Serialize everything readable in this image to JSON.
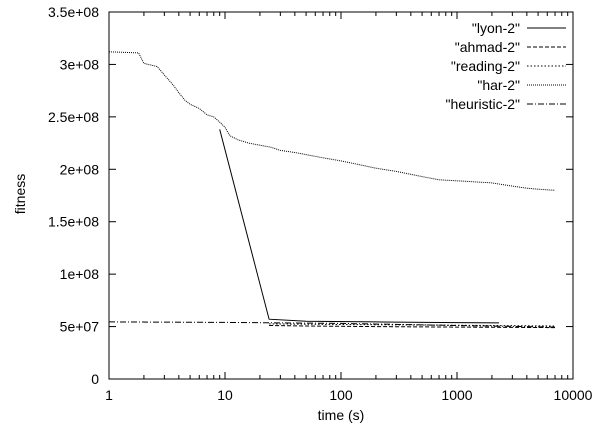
{
  "chart_data": {
    "type": "line",
    "xlabel": "time (s)",
    "ylabel": "fitness",
    "x_scale": "log",
    "xlim": [
      1,
      10000
    ],
    "ylim": [
      0,
      350000000
    ],
    "x_ticks": [
      {
        "value": 1,
        "label": "1"
      },
      {
        "value": 10,
        "label": "10"
      },
      {
        "value": 100,
        "label": "100"
      },
      {
        "value": 1000,
        "label": "1000"
      },
      {
        "value": 10000,
        "label": "10000"
      }
    ],
    "y_ticks": [
      {
        "value": 0,
        "label": "0"
      },
      {
        "value": 50000000,
        "label": "5e+07"
      },
      {
        "value": 100000000,
        "label": "1e+08"
      },
      {
        "value": 150000000,
        "label": "1.5e+08"
      },
      {
        "value": 200000000,
        "label": "2e+08"
      },
      {
        "value": 250000000,
        "label": "2.5e+08"
      },
      {
        "value": 300000000,
        "label": "3e+08"
      },
      {
        "value": 350000000,
        "label": "3.5e+08"
      }
    ],
    "grid": false,
    "legend_position": "top-right",
    "series": [
      {
        "name": "\"lyon-2\"",
        "dash": "solid",
        "points": [
          [
            9,
            238000000
          ],
          [
            24,
            57000000
          ],
          [
            50,
            55000000
          ],
          [
            200,
            54500000
          ],
          [
            1000,
            53800000
          ],
          [
            2300,
            53500000
          ]
        ]
      },
      {
        "name": "\"ahmad-2\"",
        "dash": "dashed",
        "points": [
          [
            24,
            51000000
          ],
          [
            50,
            50500000
          ],
          [
            200,
            50000000
          ],
          [
            1000,
            49500000
          ],
          [
            7000,
            49000000
          ]
        ]
      },
      {
        "name": "\"reading-2\"",
        "dash": "dotted",
        "points": [
          [
            24,
            52500000
          ],
          [
            100,
            52000000
          ],
          [
            500,
            51500000
          ],
          [
            2000,
            51000000
          ],
          [
            7000,
            50500000
          ]
        ]
      },
      {
        "name": "\"har-2\"",
        "dash": "dense-dotted",
        "points": [
          [
            1,
            312000000
          ],
          [
            1.8,
            311000000
          ],
          [
            2,
            301000000
          ],
          [
            2.6,
            298000000
          ],
          [
            3,
            290000000
          ],
          [
            3.6,
            280000000
          ],
          [
            4,
            273000000
          ],
          [
            4.5,
            266000000
          ],
          [
            5,
            262000000
          ],
          [
            6,
            258000000
          ],
          [
            7,
            252000000
          ],
          [
            8,
            250000000
          ],
          [
            9,
            245000000
          ],
          [
            10,
            240000000
          ],
          [
            11,
            232000000
          ],
          [
            13,
            228000000
          ],
          [
            16,
            225000000
          ],
          [
            20,
            223000000
          ],
          [
            25,
            221000000
          ],
          [
            30,
            218000000
          ],
          [
            40,
            216000000
          ],
          [
            50,
            214000000
          ],
          [
            70,
            211000000
          ],
          [
            100,
            208000000
          ],
          [
            150,
            204000000
          ],
          [
            200,
            201000000
          ],
          [
            300,
            198000000
          ],
          [
            500,
            193000000
          ],
          [
            700,
            190000000
          ],
          [
            1000,
            189000000
          ],
          [
            2000,
            187000000
          ],
          [
            3000,
            184000000
          ],
          [
            4000,
            182000000
          ],
          [
            5000,
            181000000
          ],
          [
            7000,
            180000000
          ]
        ]
      },
      {
        "name": "\"heuristic-2\"",
        "dash": "dash-dot",
        "points": [
          [
            1,
            54500000
          ],
          [
            10,
            54000000
          ],
          [
            100,
            53000000
          ],
          [
            1000,
            51000000
          ],
          [
            7000,
            49500000
          ]
        ]
      }
    ]
  }
}
